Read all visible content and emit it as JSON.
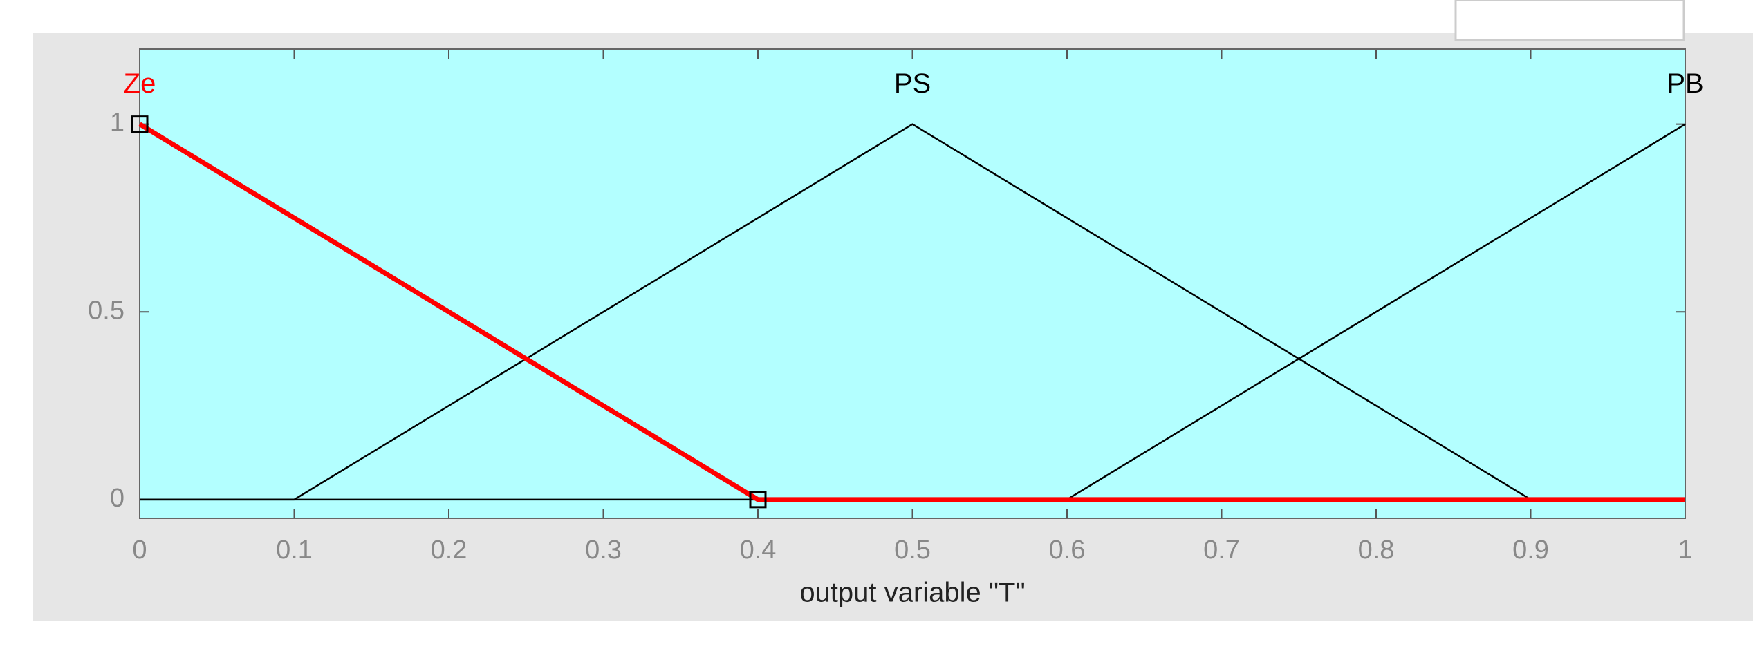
{
  "chart_data": {
    "type": "line",
    "x_label": "output variable \"T\"",
    "xlim": [
      0,
      1
    ],
    "ylim": [
      -0.05,
      1.2
    ],
    "xticks": [
      0,
      0.1,
      0.2,
      0.3,
      0.4,
      0.5,
      0.6,
      0.7,
      0.8,
      0.9,
      1
    ],
    "yticks": [
      0,
      0.5,
      1
    ],
    "background": "#b3ffff",
    "series": [
      {
        "name": "Ze",
        "color": "#ff0000",
        "x": [
          0,
          0.4,
          1
        ],
        "values": [
          1,
          0,
          0
        ]
      },
      {
        "name": "PS",
        "color": "#000000",
        "x": [
          0,
          0.1,
          0.5,
          0.9,
          1
        ],
        "values": [
          0,
          0,
          1,
          0,
          0
        ]
      },
      {
        "name": "PB",
        "color": "#000000",
        "x": [
          0,
          0.6,
          1
        ],
        "values": [
          0,
          0,
          1
        ]
      }
    ]
  }
}
